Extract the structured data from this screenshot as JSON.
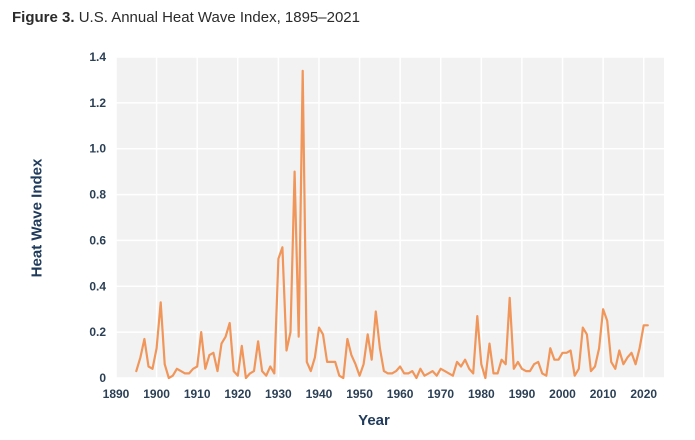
{
  "figure": {
    "number": "Figure 3.",
    "title": "U.S. Annual Heat Wave Index, 1895–2021"
  },
  "colors": {
    "line": "#f0965a",
    "plot_bg": "#f2f2f2",
    "grid": "#ffffff",
    "axis_text": "#2b3f55",
    "axis_title": "#1f3a5a"
  },
  "chart_data": {
    "type": "line",
    "title": "U.S. Annual Heat Wave Index, 1895–2021",
    "xlabel": "Year",
    "ylabel": "Heat Wave Index",
    "xlim": [
      1890,
      2025
    ],
    "ylim": [
      0,
      1.4
    ],
    "grid": true,
    "x_ticks": [
      "1890",
      "1900",
      "1910",
      "1920",
      "1930",
      "1940",
      "1950",
      "1960",
      "1970",
      "1980",
      "1990",
      "2000",
      "2010",
      "2020"
    ],
    "y_ticks": [
      "0",
      "0.2",
      "0.4",
      "0.6",
      "0.8",
      "1.0",
      "1.2",
      "1.4"
    ],
    "series": [
      {
        "x": [
          1895,
          1896,
          1897,
          1898,
          1899,
          1900,
          1901,
          1902,
          1903,
          1904,
          1905,
          1906,
          1907,
          1908,
          1909,
          1910,
          1911,
          1912,
          1913,
          1914,
          1915,
          1916,
          1917,
          1918,
          1919,
          1920,
          1921,
          1922,
          1923,
          1924,
          1925,
          1926,
          1927,
          1928,
          1929,
          1930,
          1931,
          1932,
          1933,
          1934,
          1935,
          1936,
          1937,
          1938,
          1939,
          1940,
          1941,
          1942,
          1943,
          1944,
          1945,
          1946,
          1947,
          1948,
          1949,
          1950,
          1951,
          1952,
          1953,
          1954,
          1955,
          1956,
          1957,
          1958,
          1959,
          1960,
          1961,
          1962,
          1963,
          1964,
          1965,
          1966,
          1967,
          1968,
          1969,
          1970,
          1971,
          1972,
          1973,
          1974,
          1975,
          1976,
          1977,
          1978,
          1979,
          1980,
          1981,
          1982,
          1983,
          1984,
          1985,
          1986,
          1987,
          1988,
          1989,
          1990,
          1991,
          1992,
          1993,
          1994,
          1995,
          1996,
          1997,
          1998,
          1999,
          2000,
          2001,
          2002,
          2003,
          2004,
          2005,
          2006,
          2007,
          2008,
          2009,
          2010,
          2011,
          2012,
          2013,
          2014,
          2015,
          2016,
          2017,
          2018,
          2019,
          2020,
          2021
        ],
        "values": [
          0.03,
          0.09,
          0.17,
          0.05,
          0.04,
          0.13,
          0.33,
          0.06,
          0.0,
          0.01,
          0.04,
          0.03,
          0.02,
          0.02,
          0.04,
          0.05,
          0.2,
          0.04,
          0.1,
          0.11,
          0.03,
          0.15,
          0.18,
          0.24,
          0.03,
          0.01,
          0.14,
          0.0,
          0.02,
          0.03,
          0.16,
          0.03,
          0.01,
          0.05,
          0.02,
          0.52,
          0.57,
          0.12,
          0.2,
          0.9,
          0.18,
          1.34,
          0.07,
          0.03,
          0.09,
          0.22,
          0.19,
          0.07,
          0.07,
          0.07,
          0.01,
          0.0,
          0.17,
          0.1,
          0.06,
          0.01,
          0.06,
          0.19,
          0.08,
          0.29,
          0.13,
          0.03,
          0.02,
          0.02,
          0.03,
          0.05,
          0.02,
          0.02,
          0.03,
          0.0,
          0.04,
          0.01,
          0.02,
          0.03,
          0.01,
          0.04,
          0.03,
          0.02,
          0.01,
          0.07,
          0.05,
          0.08,
          0.04,
          0.02,
          0.27,
          0.06,
          0.0,
          0.15,
          0.02,
          0.02,
          0.08,
          0.06,
          0.35,
          0.04,
          0.07,
          0.04,
          0.03,
          0.03,
          0.06,
          0.07,
          0.02,
          0.01,
          0.13,
          0.08,
          0.08,
          0.11,
          0.11,
          0.12,
          0.01,
          0.04,
          0.22,
          0.19,
          0.03,
          0.05,
          0.13,
          0.3,
          0.25,
          0.07,
          0.04,
          0.12,
          0.06,
          0.09,
          0.11,
          0.06,
          0.13,
          0.23,
          0.23
        ]
      }
    ]
  }
}
